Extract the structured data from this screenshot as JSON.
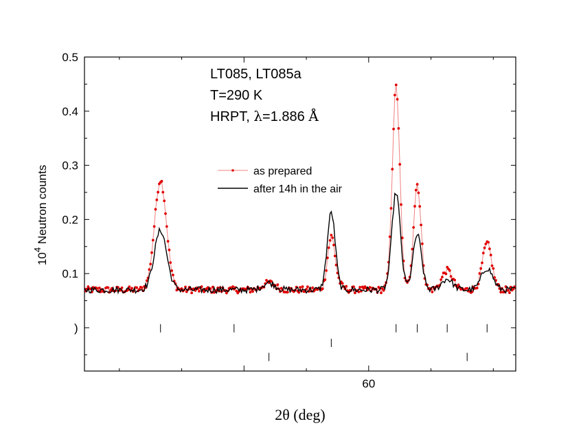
{
  "chart_data": {
    "type": "line",
    "title": "",
    "xlabel": "2θ (deg)",
    "ylabel": "10^4 Neutron counts",
    "ylabel_base": "10",
    "ylabel_exp": "4",
    "ylabel_rest": " Neutron counts",
    "xlim": [
      37.2,
      71.8
    ],
    "ylim": [
      -0.08,
      0.5
    ],
    "x_ticks": [
      {
        "value": 60,
        "label": "60"
      }
    ],
    "y_ticks": [
      {
        "value": 0.1,
        "label": "0.1"
      },
      {
        "value": 0.2,
        "label": "0.2"
      },
      {
        "value": 0.3,
        "label": "0.3"
      },
      {
        "value": 0.4,
        "label": "0.4"
      },
      {
        "value": 0.5,
        "label": "0.5"
      }
    ],
    "annotations": {
      "line1": "LT085, LT085a",
      "line2": "T=290 K",
      "line3_prefix": "HRPT, ",
      "line3_symbol": "λ",
      "line3_value": "=1.886 ",
      "line3_unit": "Å"
    },
    "legend": {
      "position": "center-right"
    },
    "baseline": 0.07,
    "series": [
      {
        "name": "as prepared",
        "color": "#e00000",
        "marker": "dot",
        "peaks": [
          {
            "center": 43.3,
            "height": 0.203,
            "width": 0.48
          },
          {
            "center": 52.0,
            "height": 0.013,
            "width": 0.5
          },
          {
            "center": 57.0,
            "height": 0.097,
            "width": 0.3
          },
          {
            "center": 57.6,
            "height": 0.008,
            "width": 0.35
          },
          {
            "center": 62.2,
            "height": 0.375,
            "width": 0.3
          },
          {
            "center": 63.9,
            "height": 0.195,
            "width": 0.3
          },
          {
            "center": 66.3,
            "height": 0.036,
            "width": 0.42
          },
          {
            "center": 69.5,
            "height": 0.085,
            "width": 0.38
          }
        ]
      },
      {
        "name": "after 14h in the air",
        "color": "#000000",
        "marker": "none",
        "peaks": [
          {
            "center": 43.3,
            "height": 0.11,
            "width": 0.5
          },
          {
            "center": 52.0,
            "height": 0.013,
            "width": 0.5
          },
          {
            "center": 57.0,
            "height": 0.143,
            "width": 0.32
          },
          {
            "center": 62.2,
            "height": 0.18,
            "width": 0.34
          },
          {
            "center": 63.9,
            "height": 0.102,
            "width": 0.34
          },
          {
            "center": 66.3,
            "height": 0.02,
            "width": 0.45
          },
          {
            "center": 69.5,
            "height": 0.04,
            "width": 0.45
          }
        ]
      }
    ],
    "reflection_rows": [
      {
        "y": -0.001,
        "positions": [
          43.3,
          49.2,
          62.2,
          63.9,
          66.3,
          69.5
        ]
      },
      {
        "y": -0.028,
        "positions": [
          57.0
        ]
      },
      {
        "y": -0.054,
        "positions": [
          52.0,
          67.9
        ]
      }
    ]
  }
}
